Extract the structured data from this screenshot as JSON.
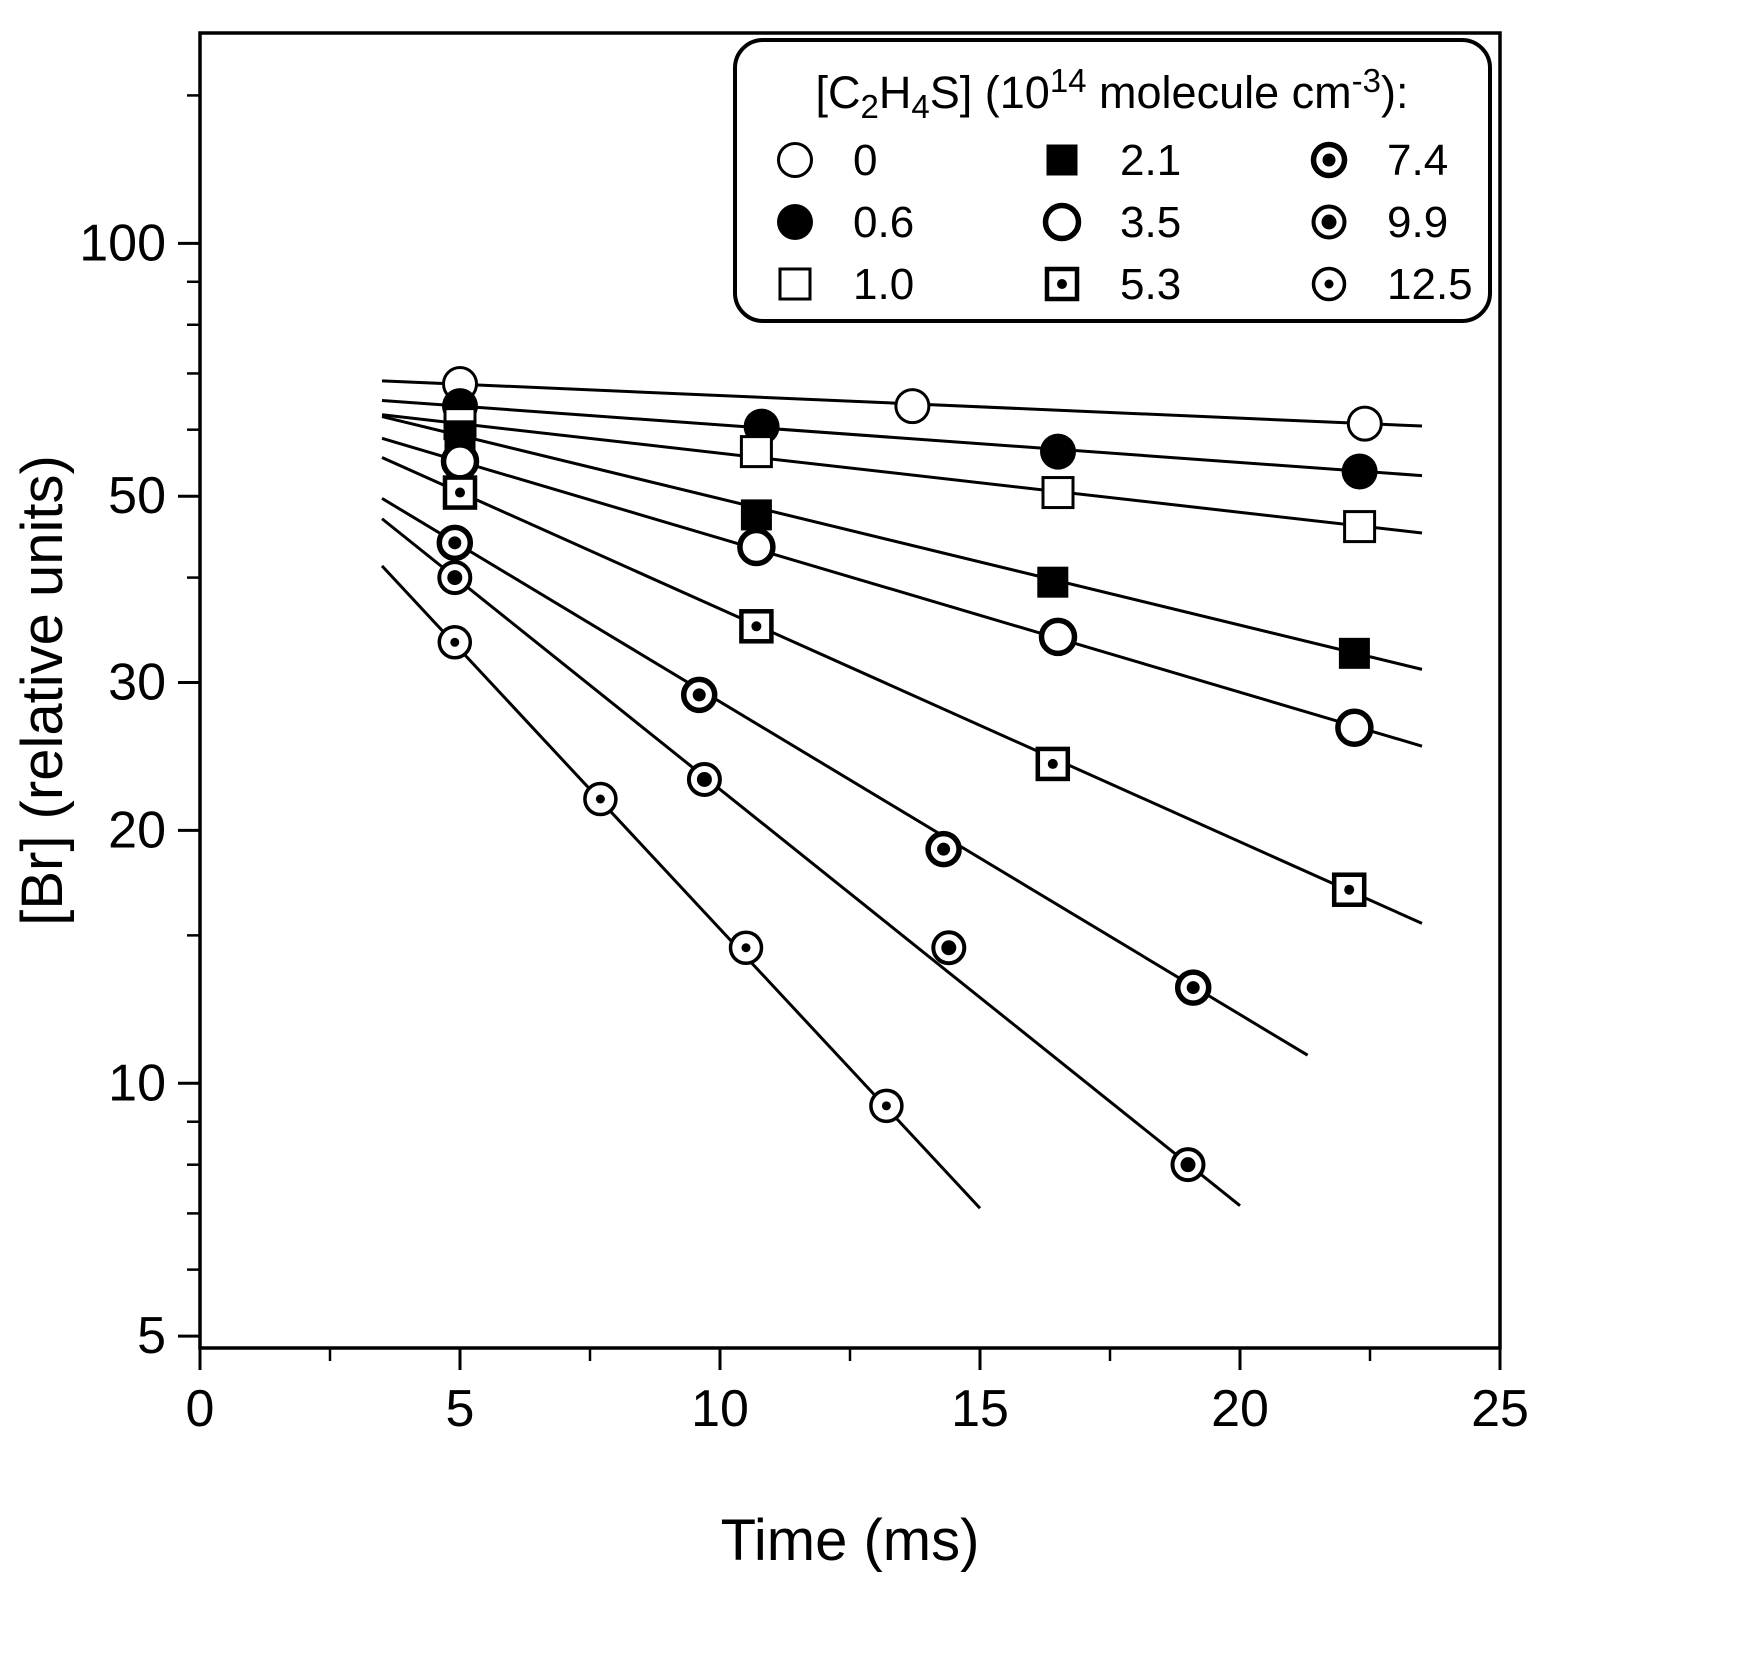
{
  "colors": {
    "ink": "#000000",
    "paper": "#ffffff"
  },
  "chart_data": {
    "type": "scatter",
    "title": "",
    "xlabel": "Time (ms)",
    "ylabel": "[Br] (relative units)",
    "x_axis": {
      "min": 0,
      "max": 25,
      "major_ticks": [
        0,
        5,
        10,
        15,
        20,
        25
      ],
      "tick_labels": [
        "0",
        "5",
        "10",
        "15",
        "20",
        "25"
      ],
      "minor_ticks": [
        2.5,
        7.5,
        12.5,
        17.5,
        22.5
      ]
    },
    "y_axis": {
      "scale": "log",
      "min": 4.84,
      "max": 178,
      "major_ticks": [
        5,
        10,
        20,
        30,
        50,
        100
      ],
      "tick_labels": [
        "5",
        "10",
        "20",
        "30",
        "50",
        "100"
      ],
      "minor_ticks": [
        6,
        7,
        8,
        9,
        15,
        40,
        60,
        70,
        80,
        90,
        150
      ]
    },
    "grid": false,
    "legend": {
      "position": "top-right",
      "title_plain": "[C2H4S] (10^14 molecule cm^-3):",
      "title_segments": [
        {
          "t": "[C"
        },
        {
          "t": "2",
          "shift": "sub"
        },
        {
          "t": "H"
        },
        {
          "t": "4",
          "shift": "sub"
        },
        {
          "t": "S] (10"
        },
        {
          "t": "14",
          "shift": "sup"
        },
        {
          "t": " molecule cm"
        },
        {
          "t": "-3",
          "shift": "sup"
        },
        {
          "t": "):"
        }
      ],
      "rows": 3
    },
    "series": [
      {
        "name": "0",
        "marker": "open-circle",
        "points": [
          [
            5.0,
            68.0
          ],
          [
            13.7,
            64.0
          ],
          [
            22.4,
            61.0
          ]
        ],
        "fit": [
          [
            3.5,
            68.6
          ],
          [
            23.5,
            60.6
          ]
        ]
      },
      {
        "name": "0.6",
        "marker": "filled-circle",
        "points": [
          [
            5.0,
            64.0
          ],
          [
            10.8,
            60.5
          ],
          [
            16.5,
            56.5
          ],
          [
            22.3,
            53.5
          ]
        ],
        "fit": [
          [
            3.5,
            65.0
          ],
          [
            23.5,
            52.9
          ]
        ]
      },
      {
        "name": "1.0",
        "marker": "open-square",
        "points": [
          [
            5.0,
            61.0
          ],
          [
            10.7,
            56.5
          ],
          [
            16.5,
            50.5
          ],
          [
            22.3,
            46.0
          ]
        ],
        "fit": [
          [
            3.5,
            62.5
          ],
          [
            23.5,
            45.2
          ]
        ]
      },
      {
        "name": "2.1",
        "marker": "filled-square",
        "points": [
          [
            5.0,
            59.0
          ],
          [
            10.7,
            47.5
          ],
          [
            16.4,
            39.5
          ],
          [
            22.2,
            32.5
          ]
        ],
        "fit": [
          [
            3.5,
            62.2
          ],
          [
            23.5,
            31.1
          ]
        ]
      },
      {
        "name": "3.5",
        "marker": "bold-open-circle",
        "points": [
          [
            5.0,
            55.0
          ],
          [
            10.7,
            43.5
          ],
          [
            16.5,
            34.0
          ],
          [
            22.2,
            26.5
          ]
        ],
        "fit": [
          [
            3.5,
            58.6
          ],
          [
            23.5,
            25.2
          ]
        ]
      },
      {
        "name": "5.3",
        "marker": "square-dot",
        "points": [
          [
            5.0,
            50.5
          ],
          [
            10.7,
            35.0
          ],
          [
            16.4,
            24.0
          ],
          [
            22.1,
            17.0
          ]
        ],
        "fit": [
          [
            3.5,
            55.6
          ],
          [
            23.5,
            15.5
          ]
        ]
      },
      {
        "name": "7.4",
        "marker": "circle-dot-bold",
        "points": [
          [
            4.9,
            44.0
          ],
          [
            9.6,
            29.0
          ],
          [
            14.3,
            19.0
          ],
          [
            19.1,
            13.0
          ]
        ],
        "fit": [
          [
            3.5,
            49.7
          ],
          [
            21.3,
            10.8
          ]
        ]
      },
      {
        "name": "9.9",
        "marker": "circle-dot-medium",
        "points": [
          [
            4.9,
            40.0
          ],
          [
            9.7,
            23.0
          ],
          [
            14.4,
            14.5
          ],
          [
            19.0,
            8.0
          ]
        ],
        "fit": [
          [
            3.5,
            47.0
          ],
          [
            20.0,
            7.15
          ]
        ]
      },
      {
        "name": "12.5",
        "marker": "circle-dot-small",
        "points": [
          [
            4.9,
            33.5
          ],
          [
            7.7,
            21.8
          ],
          [
            10.5,
            14.5
          ],
          [
            13.2,
            9.4
          ]
        ],
        "fit": [
          [
            3.5,
            41.3
          ],
          [
            15.0,
            7.1
          ]
        ]
      }
    ]
  }
}
